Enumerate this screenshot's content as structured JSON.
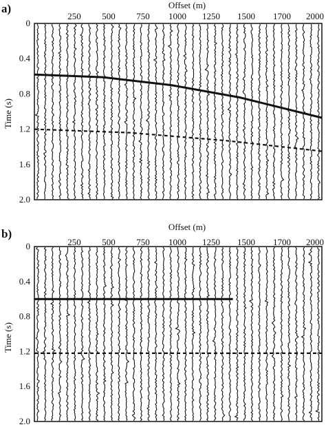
{
  "chart_data": [
    {
      "panel_label": "a)",
      "type": "line",
      "xlabel": "Offset (m)",
      "ylabel": "Time (s)",
      "x_ticks": [
        "250",
        "500",
        "750",
        "1000",
        "1250",
        "1500",
        "1700",
        "2000"
      ],
      "y_ticks": [
        "0",
        "0.4",
        "0.8",
        "1.2",
        "1.6",
        "2.0"
      ],
      "xlim": [
        0,
        2100
      ],
      "ylim": [
        0,
        2.0
      ],
      "y_inverted": true,
      "trace_count": 39,
      "events": [
        {
          "kind": "solid",
          "points": [
            [
              0,
              0.58
            ],
            [
              500,
              0.61
            ],
            [
              1000,
              0.7
            ],
            [
              1500,
              0.84
            ],
            [
              2100,
              1.07
            ]
          ]
        },
        {
          "kind": "dashed",
          "points": [
            [
              0,
              1.2
            ],
            [
              700,
              1.24
            ],
            [
              1400,
              1.33
            ],
            [
              2100,
              1.45
            ]
          ]
        }
      ]
    },
    {
      "panel_label": "b)",
      "type": "line",
      "xlabel": "Offset (m)",
      "ylabel": "Time (s)",
      "x_ticks": [
        "250",
        "500",
        "750",
        "1000",
        "1250",
        "1500",
        "1700",
        "2000"
      ],
      "y_ticks": [
        "0",
        "0.4",
        "0.8",
        "1.2",
        "1.6",
        "2.0"
      ],
      "xlim": [
        0,
        2100
      ],
      "ylim": [
        0,
        2.0
      ],
      "y_inverted": true,
      "trace_count": 39,
      "events": [
        {
          "kind": "solid",
          "points": [
            [
              0,
              0.6
            ],
            [
              1450,
              0.6
            ]
          ]
        },
        {
          "kind": "dashed",
          "points": [
            [
              0,
              1.22
            ],
            [
              2100,
              1.22
            ]
          ]
        }
      ]
    }
  ]
}
